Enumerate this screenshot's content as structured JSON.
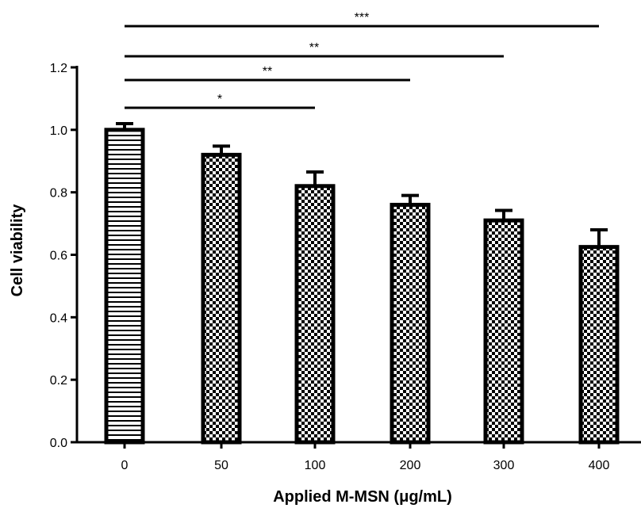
{
  "chart_data": {
    "type": "bar",
    "title": "",
    "xlabel": "Applied M-MSN (μg/mL)",
    "ylabel": "Cell viability",
    "categories": [
      "0",
      "50",
      "100",
      "200",
      "300",
      "400"
    ],
    "values": [
      1.0,
      0.92,
      0.82,
      0.76,
      0.71,
      0.625
    ],
    "errors": [
      0.02,
      0.028,
      0.045,
      0.03,
      0.032,
      0.055
    ],
    "ylim": [
      0,
      1.2
    ],
    "yticks": [
      "0.0",
      "0.2",
      "0.4",
      "0.6",
      "0.8",
      "1.0",
      "1.2"
    ],
    "grid": false,
    "legend": "none",
    "fills": [
      "horizontal-stripes",
      "checkerboard",
      "checkerboard",
      "checkerboard",
      "checkerboard",
      "checkerboard"
    ],
    "significance": [
      {
        "from": "0",
        "to": "100",
        "label": "*"
      },
      {
        "from": "0",
        "to": "200",
        "label": "**"
      },
      {
        "from": "0",
        "to": "300",
        "label": "**"
      },
      {
        "from": "0",
        "to": "400",
        "label": "***"
      }
    ],
    "colors": {
      "bar_stroke": "#000000",
      "pattern": "#000000",
      "background": "#ffffff"
    }
  }
}
